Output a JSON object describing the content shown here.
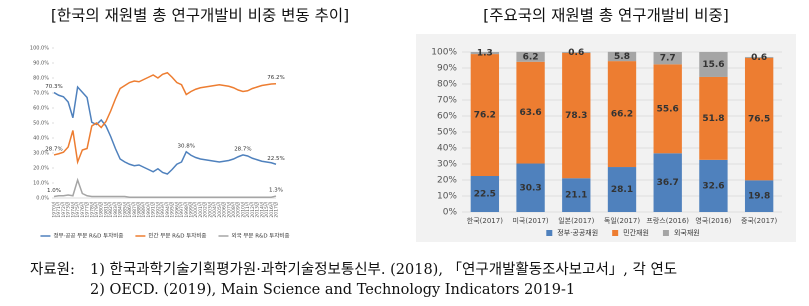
{
  "chart_data": [
    {
      "type": "line",
      "title": "[한국의 재원별 총 연구개발비 비중 변동 추이]",
      "categories": [
        "1970년",
        "1971년",
        "1972년",
        "1973년",
        "1974년",
        "1975년",
        "1976년",
        "1977년",
        "1978년",
        "1979년",
        "1980년",
        "1981년",
        "1982년",
        "1983년",
        "1984년",
        "1985년",
        "1986년",
        "1987년",
        "1988년",
        "1989년",
        "1990년",
        "1991년",
        "1992년",
        "1993년",
        "1994년",
        "1995년",
        "1996년",
        "1997년",
        "1998년",
        "1999년",
        "2000년",
        "2001년",
        "2002년",
        "2003년",
        "2004년",
        "2005년",
        "2006년",
        "2007년",
        "2008년",
        "2009년",
        "2010년",
        "2011년",
        "2012년",
        "2013년",
        "2014년",
        "2015년",
        "2016년",
        "2017년"
      ],
      "series": [
        {
          "name": "정부·공공 부문 R&D 투자비중",
          "color": "#4f81bd",
          "values": [
            70.3,
            68.5,
            67.5,
            64.0,
            53.5,
            74.0,
            70.5,
            67.0,
            50.5,
            49.0,
            52.0,
            48.0,
            41.0,
            33.0,
            26.0,
            24.0,
            22.5,
            21.5,
            22.0,
            20.5,
            19.0,
            17.5,
            19.5,
            17.0,
            16.0,
            19.0,
            22.5,
            24.0,
            30.8,
            28.5,
            27.0,
            26.0,
            25.5,
            25.0,
            24.5,
            24.0,
            24.5,
            25.0,
            26.0,
            27.5,
            28.7,
            28.0,
            26.5,
            25.5,
            24.5,
            24.0,
            23.5,
            22.5
          ],
          "value_labels": [
            "70.3%",
            null,
            null,
            null,
            null,
            null,
            null,
            null,
            null,
            null,
            null,
            null,
            null,
            null,
            null,
            null,
            null,
            null,
            null,
            null,
            null,
            null,
            null,
            null,
            null,
            null,
            null,
            null,
            "30.8%",
            null,
            null,
            null,
            null,
            null,
            null,
            null,
            null,
            null,
            null,
            null,
            "28.7%",
            null,
            null,
            null,
            null,
            null,
            null,
            "22.5%"
          ]
        },
        {
          "name": "민간 부문 R&D 투자비중",
          "color": "#ed7d31",
          "values": [
            28.7,
            29.5,
            30.5,
            34.0,
            45.0,
            24.0,
            32.0,
            33.0,
            48.0,
            50.0,
            47.0,
            51.0,
            58.0,
            66.0,
            73.0,
            75.0,
            77.0,
            78.0,
            77.5,
            79.0,
            80.5,
            82.0,
            80.0,
            82.5,
            83.5,
            80.5,
            77.0,
            75.5,
            69.0,
            71.0,
            72.5,
            73.5,
            74.0,
            74.5,
            75.0,
            75.5,
            75.0,
            74.5,
            73.5,
            72.0,
            71.0,
            71.5,
            73.0,
            74.0,
            75.0,
            75.5,
            76.0,
            76.2
          ],
          "value_labels": [
            "28.7%",
            null,
            null,
            null,
            null,
            null,
            null,
            null,
            null,
            null,
            null,
            null,
            null,
            null,
            null,
            null,
            null,
            null,
            null,
            null,
            null,
            null,
            null,
            null,
            null,
            null,
            null,
            null,
            null,
            null,
            null,
            null,
            null,
            null,
            null,
            null,
            null,
            null,
            null,
            null,
            null,
            null,
            null,
            null,
            null,
            null,
            null,
            "76.2%"
          ]
        },
        {
          "name": "외국 부문 R&D 투자비중",
          "color": "#a5a5a5",
          "values": [
            1.0,
            1.5,
            1.5,
            2.0,
            1.5,
            12.0,
            3.0,
            1.5,
            1.0,
            1.0,
            1.0,
            1.0,
            1.0,
            1.0,
            1.0,
            1.0,
            0.5,
            0.5,
            0.5,
            0.5,
            0.5,
            0.5,
            0.5,
            0.5,
            0.5,
            0.5,
            0.5,
            0.5,
            0.5,
            0.5,
            0.5,
            0.5,
            0.5,
            0.5,
            0.5,
            0.5,
            0.5,
            0.5,
            0.5,
            0.5,
            0.5,
            0.5,
            0.5,
            0.5,
            0.5,
            0.5,
            0.5,
            1.3
          ],
          "value_labels": [
            "1.0%",
            null,
            null,
            null,
            null,
            null,
            null,
            null,
            null,
            null,
            null,
            null,
            null,
            null,
            null,
            null,
            null,
            null,
            null,
            null,
            null,
            null,
            null,
            null,
            null,
            null,
            null,
            null,
            null,
            null,
            null,
            null,
            null,
            null,
            null,
            null,
            null,
            null,
            null,
            null,
            null,
            null,
            null,
            null,
            null,
            null,
            null,
            "1.3%"
          ]
        }
      ],
      "ylim": [
        0,
        100
      ],
      "yticks": [
        {
          "value": 0,
          "label": "0.0%"
        },
        {
          "value": 10,
          "label": "10.0%"
        },
        {
          "value": 20,
          "label": "20.0%"
        },
        {
          "value": 30,
          "label": "30.0%"
        },
        {
          "value": 40,
          "label": "40.0%"
        },
        {
          "value": 50,
          "label": "50.0%"
        },
        {
          "value": 60,
          "label": "60.0%"
        },
        {
          "value": 70,
          "label": "70.0%"
        },
        {
          "value": 80,
          "label": "80.0%"
        },
        {
          "value": 90,
          "label": "90.0%"
        },
        {
          "value": 100,
          "label": "100.0%"
        }
      ],
      "grid": false,
      "legend": "bottom"
    },
    {
      "type": "bar",
      "stacked": true,
      "title": "[주요국의 재원별 총 연구개발비 비중]",
      "categories": [
        "한국(2017)",
        "미국(2017)",
        "일본(2017)",
        "독일(2017)",
        "프랑스(2016)",
        "영국(2016)",
        "중국(2017)"
      ],
      "series": [
        {
          "name": "정부·공공재원",
          "color": "#4f81bd",
          "values": [
            22.5,
            30.3,
            21.1,
            28.1,
            36.7,
            32.6,
            19.8
          ]
        },
        {
          "name": "민간재원",
          "color": "#ed7d31",
          "values": [
            76.2,
            63.6,
            78.3,
            66.2,
            55.6,
            51.8,
            76.5
          ]
        },
        {
          "name": "외국재원",
          "color": "#a5a5a5",
          "values": [
            1.3,
            6.2,
            0.6,
            5.8,
            7.7,
            15.6,
            0.6
          ]
        }
      ],
      "ylim": [
        0,
        100
      ],
      "yticks": [
        {
          "value": 0,
          "label": "0%"
        },
        {
          "value": 10,
          "label": "10%"
        },
        {
          "value": 20,
          "label": "20%"
        },
        {
          "value": 30,
          "label": "30%"
        },
        {
          "value": 40,
          "label": "40%"
        },
        {
          "value": 50,
          "label": "50%"
        },
        {
          "value": 60,
          "label": "60%"
        },
        {
          "value": 70,
          "label": "70%"
        },
        {
          "value": 80,
          "label": "80%"
        },
        {
          "value": 90,
          "label": "90%"
        },
        {
          "value": 100,
          "label": "100%"
        }
      ],
      "grid": true,
      "legend": "bottom"
    }
  ],
  "source": {
    "label": "자료원:",
    "lines": [
      "1) 한국과학기술기획평가원·과학기술정보통신부. (2018), 「연구개발활동조사보고서」, 각 연도",
      "2) OECD. (2019), Main Science and Technology Indicators 2019-1"
    ]
  }
}
